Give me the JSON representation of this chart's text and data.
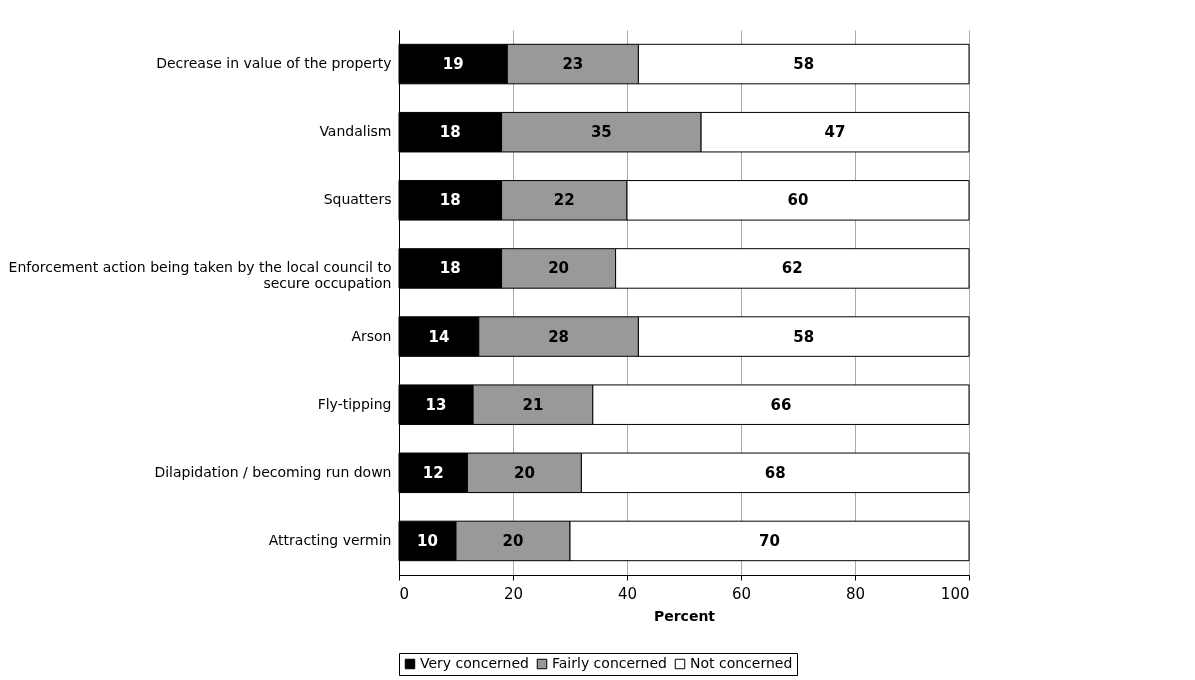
{
  "chart_data": {
    "type": "bar",
    "orientation": "horizontal",
    "stacked": true,
    "data_labels": true,
    "grid": "x",
    "legend": "bottom",
    "xlabel": "Percent",
    "xlim": [
      0,
      100
    ],
    "xticks": [
      0,
      20,
      40,
      60,
      80,
      100
    ],
    "categories": [
      "Decrease in value of the property",
      "Vandalism",
      "Squatters",
      "Enforcement action being taken by the local council to secure occupation",
      "Arson",
      "Fly-tipping",
      "Dilapidation / becoming run down",
      "Attracting vermin"
    ],
    "series": [
      {
        "name": "Very concerned",
        "color": "#000000",
        "values": [
          19,
          18,
          18,
          18,
          14,
          13,
          12,
          10
        ]
      },
      {
        "name": "Fairly concerned",
        "color": "#999999",
        "values": [
          23,
          35,
          22,
          20,
          28,
          21,
          20,
          20
        ]
      },
      {
        "name": "Not concerned",
        "color": "#ffffff",
        "values": [
          58,
          47,
          60,
          62,
          58,
          66,
          68,
          70
        ]
      }
    ]
  }
}
